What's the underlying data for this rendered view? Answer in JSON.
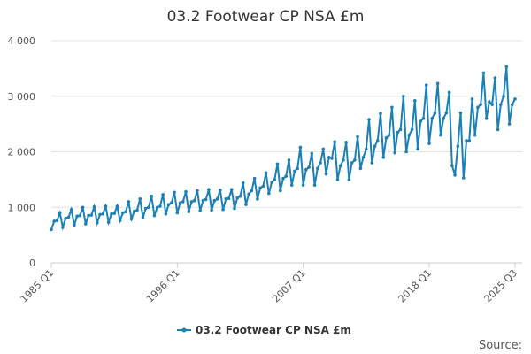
{
  "chart_data": {
    "type": "line",
    "title": "03.2 Footwear CP NSA £m",
    "source": "Source:",
    "categories": [
      "1985 Q1",
      null,
      null,
      null,
      null,
      null,
      null,
      null,
      null,
      null,
      null,
      null,
      null,
      null,
      null,
      null,
      null,
      null,
      null,
      null,
      null,
      null,
      null,
      null,
      null,
      null,
      null,
      null,
      null,
      null,
      null,
      null,
      null,
      null,
      null,
      null,
      null,
      null,
      null,
      null,
      null,
      null,
      null,
      null,
      "1996 Q1",
      null,
      null,
      null,
      null,
      null,
      null,
      null,
      null,
      null,
      null,
      null,
      null,
      null,
      null,
      null,
      null,
      null,
      null,
      null,
      null,
      null,
      null,
      null,
      null,
      null,
      null,
      null,
      null,
      null,
      null,
      null,
      null,
      null,
      null,
      null,
      null,
      null,
      null,
      null,
      null,
      null,
      null,
      null,
      "2007 Q1",
      null,
      null,
      null,
      null,
      null,
      null,
      null,
      null,
      null,
      null,
      null,
      null,
      null,
      null,
      null,
      null,
      null,
      null,
      null,
      null,
      null,
      null,
      null,
      null,
      null,
      null,
      null,
      null,
      null,
      null,
      null,
      null,
      null,
      null,
      null,
      null,
      null,
      null,
      null,
      null,
      null,
      null,
      null,
      "2018 Q1",
      null,
      null,
      null,
      null,
      null,
      null,
      null,
      null,
      null,
      null,
      null,
      null,
      null,
      null,
      null,
      null,
      null,
      null,
      null,
      null,
      null,
      null,
      null,
      null,
      null,
      null,
      null,
      null,
      null,
      "2025 Q3"
    ],
    "series": [
      {
        "name": "03.2 Footwear CP NSA £m",
        "color": "#1a80b6",
        "values": [
          600,
          750,
          760,
          900,
          640,
          800,
          820,
          960,
          680,
          840,
          850,
          1000,
          700,
          850,
          860,
          1010,
          720,
          870,
          880,
          1020,
          730,
          880,
          890,
          1020,
          760,
          900,
          920,
          1100,
          790,
          930,
          950,
          1150,
          820,
          980,
          1000,
          1200,
          850,
          1000,
          1020,
          1230,
          880,
          1050,
          1080,
          1270,
          900,
          1080,
          1100,
          1280,
          920,
          1100,
          1120,
          1300,
          940,
          1120,
          1140,
          1320,
          950,
          1120,
          1150,
          1310,
          960,
          1150,
          1160,
          1320,
          980,
          1170,
          1200,
          1440,
          1050,
          1240,
          1300,
          1520,
          1150,
          1350,
          1380,
          1620,
          1250,
          1450,
          1500,
          1780,
          1300,
          1520,
          1560,
          1850,
          1400,
          1650,
          1700,
          2080,
          1400,
          1680,
          1720,
          1970,
          1400,
          1700,
          1800,
          2050,
          1600,
          1900,
          1880,
          2180,
          1500,
          1750,
          1850,
          2170,
          1500,
          1800,
          1850,
          2270,
          1700,
          1900,
          2050,
          2580,
          1800,
          2100,
          2200,
          2690,
          1900,
          2250,
          2300,
          2800,
          1980,
          2350,
          2400,
          3000,
          2000,
          2300,
          2400,
          2920,
          2050,
          2550,
          2600,
          3200,
          2150,
          2600,
          2700,
          3230,
          2300,
          2600,
          2700,
          3070,
          1750,
          1580,
          2100,
          2700,
          1530,
          2200,
          2200,
          2950,
          2300,
          2800,
          2850,
          3420,
          2600,
          2900,
          2850,
          3330,
          2400,
          2850,
          3000,
          3530,
          2500,
          2850,
          2950
        ]
      }
    ],
    "ylim": [
      0,
      4000
    ],
    "yticks": [
      0,
      {
        "value": 1000,
        "label": "1 000"
      },
      {
        "value": 2000,
        "label": "2 000"
      },
      {
        "value": 3000,
        "label": "3 000"
      },
      {
        "value": 4000,
        "label": "4 000"
      }
    ],
    "grid": true,
    "legend": "bottom"
  }
}
